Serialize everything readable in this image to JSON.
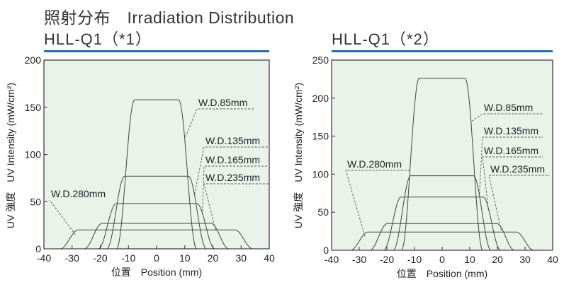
{
  "page_title": "照射分布　Irradiation Distribution",
  "chart_data": [
    {
      "type": "line",
      "title": "HLL-Q1（*1）",
      "xlabel": "位置　Position (mm)",
      "ylabel": "UV 強度　UV Intensity (mW/cm²)",
      "xlim": [
        -40,
        40
      ],
      "ylim": [
        0,
        200
      ],
      "xticks": [
        "-40",
        "-30",
        "-20",
        "-10",
        "0",
        "10",
        "20",
        "30",
        "40"
      ],
      "yticks": [
        "0",
        "50",
        "100",
        "150",
        "200"
      ],
      "plot_bg": "#eaf2ea",
      "series": [
        {
          "name": "W.D.85mm",
          "peak": 158,
          "half_width": 11
        },
        {
          "name": "W.D.135mm",
          "peak": 77,
          "half_width": 14.5
        },
        {
          "name": "W.D.165mm",
          "peak": 48,
          "half_width": 17.5
        },
        {
          "name": "W.D.235mm",
          "peak": 27,
          "half_width": 22.5
        },
        {
          "name": "W.D.280mm",
          "peak": 20,
          "half_width": 31
        }
      ]
    },
    {
      "type": "line",
      "title": "HLL-Q1（*2）",
      "xlabel": "位置　Position (mm)",
      "ylabel": "UV 強度　UV Intensity (mW/cm²)",
      "xlim": [
        -40,
        40
      ],
      "ylim": [
        0,
        250
      ],
      "xticks": [
        "-40",
        "-30",
        "-20",
        "-10",
        "0",
        "10",
        "20",
        "30",
        "40"
      ],
      "yticks": [
        "0",
        "50",
        "100",
        "150",
        "200",
        "250"
      ],
      "plot_bg": "#eaf2ea",
      "series": [
        {
          "name": "W.D.85mm",
          "peak": 226,
          "half_width": 11.5
        },
        {
          "name": "W.D.135mm",
          "peak": 98,
          "half_width": 14.5
        },
        {
          "name": "W.D.165mm",
          "peak": 70,
          "half_width": 18
        },
        {
          "name": "W.D.235mm",
          "peak": 35,
          "half_width": 23
        },
        {
          "name": "W.D.280mm",
          "peak": 24,
          "half_width": 30
        }
      ]
    }
  ]
}
